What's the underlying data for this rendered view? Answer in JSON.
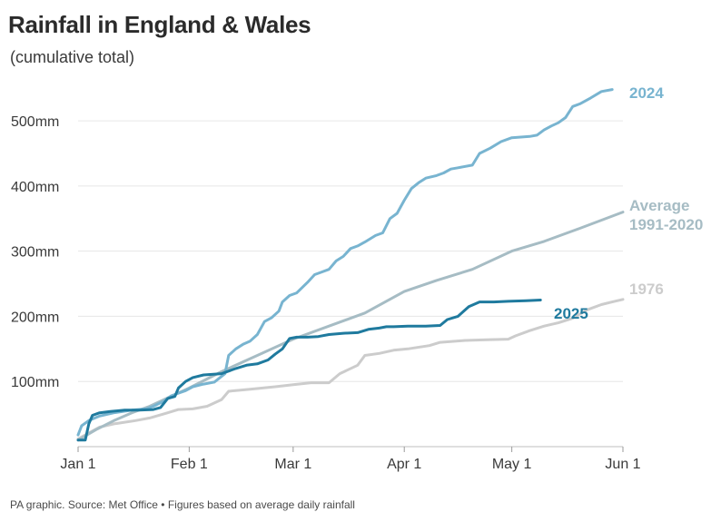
{
  "header": {
    "title": "Rainfall in England & Wales",
    "subtitle": "(cumulative total)"
  },
  "footer": {
    "source": "PA graphic. Source: Met Office • Figures based on average daily rainfall"
  },
  "chart_data": {
    "type": "line",
    "title": "Rainfall in England & Wales",
    "subtitle": "(cumulative total)",
    "xlabel": "",
    "ylabel": "",
    "x_unit": "day of year (0 = Jan 1)",
    "xlim": [
      0,
      152
    ],
    "ylim": [
      0,
      560
    ],
    "grid": true,
    "y_ticks": [
      {
        "value": 100,
        "label": "100mm"
      },
      {
        "value": 200,
        "label": "200mm"
      },
      {
        "value": 300,
        "label": "300mm"
      },
      {
        "value": 400,
        "label": "400mm"
      },
      {
        "value": 500,
        "label": "500mm"
      }
    ],
    "x_ticks": [
      {
        "value": 0,
        "label": "Jan 1"
      },
      {
        "value": 31,
        "label": "Feb 1"
      },
      {
        "value": 60,
        "label": "Mar 1"
      },
      {
        "value": 91,
        "label": "Apr 1"
      },
      {
        "value": 121,
        "label": "May 1"
      },
      {
        "value": 152,
        "label": "Jun 1"
      }
    ],
    "series": [
      {
        "name": "1976",
        "label_lines": [
          "1976"
        ],
        "color": "#cccccc",
        "points": [
          [
            0,
            12
          ],
          [
            2,
            18
          ],
          [
            6,
            30
          ],
          [
            10,
            35
          ],
          [
            16,
            40
          ],
          [
            20,
            44
          ],
          [
            25,
            52
          ],
          [
            28,
            57
          ],
          [
            32,
            58
          ],
          [
            36,
            62
          ],
          [
            40,
            72
          ],
          [
            42,
            85
          ],
          [
            48,
            88
          ],
          [
            55,
            92
          ],
          [
            60,
            95
          ],
          [
            65,
            98
          ],
          [
            70,
            98
          ],
          [
            73,
            112
          ],
          [
            78,
            125
          ],
          [
            80,
            140
          ],
          [
            84,
            143
          ],
          [
            88,
            148
          ],
          [
            92,
            150
          ],
          [
            98,
            155
          ],
          [
            101,
            160
          ],
          [
            108,
            163
          ],
          [
            114,
            164
          ],
          [
            120,
            165
          ],
          [
            122,
            170
          ],
          [
            126,
            178
          ],
          [
            130,
            185
          ],
          [
            134,
            190
          ],
          [
            138,
            197
          ],
          [
            142,
            210
          ],
          [
            146,
            218
          ],
          [
            149,
            222
          ],
          [
            152,
            226
          ]
        ]
      },
      {
        "name": "Average 1991-2020",
        "label_lines": [
          "Average",
          "1991-2020"
        ],
        "color": "#a6bcc4",
        "points": [
          [
            0,
            10
          ],
          [
            5,
            26
          ],
          [
            10,
            40
          ],
          [
            15,
            52
          ],
          [
            20,
            62
          ],
          [
            25,
            75
          ],
          [
            31,
            90
          ],
          [
            40,
            115
          ],
          [
            50,
            140
          ],
          [
            60,
            165
          ],
          [
            70,
            185
          ],
          [
            80,
            205
          ],
          [
            91,
            238
          ],
          [
            100,
            255
          ],
          [
            110,
            272
          ],
          [
            121,
            300
          ],
          [
            130,
            315
          ],
          [
            140,
            335
          ],
          [
            152,
            360
          ]
        ]
      },
      {
        "name": "2024",
        "label_lines": [
          "2024"
        ],
        "color": "#78b4d0",
        "points": [
          [
            0,
            18
          ],
          [
            1,
            32
          ],
          [
            3,
            40
          ],
          [
            6,
            47
          ],
          [
            10,
            52
          ],
          [
            15,
            56
          ],
          [
            19,
            58
          ],
          [
            21,
            62
          ],
          [
            24,
            70
          ],
          [
            26,
            78
          ],
          [
            28,
            82
          ],
          [
            30,
            86
          ],
          [
            32,
            92
          ],
          [
            35,
            96
          ],
          [
            38,
            99
          ],
          [
            41,
            112
          ],
          [
            42,
            140
          ],
          [
            44,
            150
          ],
          [
            46,
            157
          ],
          [
            48,
            162
          ],
          [
            50,
            172
          ],
          [
            52,
            192
          ],
          [
            54,
            198
          ],
          [
            56,
            208
          ],
          [
            57,
            222
          ],
          [
            59,
            232
          ],
          [
            61,
            236
          ],
          [
            64,
            252
          ],
          [
            66,
            264
          ],
          [
            68,
            268
          ],
          [
            70,
            272
          ],
          [
            72,
            285
          ],
          [
            74,
            292
          ],
          [
            76,
            304
          ],
          [
            78,
            308
          ],
          [
            80,
            314
          ],
          [
            83,
            324
          ],
          [
            85,
            328
          ],
          [
            87,
            350
          ],
          [
            89,
            358
          ],
          [
            91,
            378
          ],
          [
            93,
            396
          ],
          [
            95,
            405
          ],
          [
            97,
            412
          ],
          [
            100,
            416
          ],
          [
            102,
            420
          ],
          [
            104,
            426
          ],
          [
            106,
            428
          ],
          [
            110,
            432
          ],
          [
            112,
            450
          ],
          [
            115,
            458
          ],
          [
            118,
            468
          ],
          [
            121,
            474
          ],
          [
            126,
            476
          ],
          [
            128,
            478
          ],
          [
            130,
            486
          ],
          [
            132,
            492
          ],
          [
            134,
            497
          ],
          [
            136,
            505
          ],
          [
            138,
            522
          ],
          [
            140,
            526
          ],
          [
            143,
            535
          ],
          [
            146,
            545
          ],
          [
            149,
            548
          ]
        ]
      },
      {
        "name": "2025",
        "label_lines": [
          "2025"
        ],
        "color": "#1f7a9e",
        "points": [
          [
            0,
            10
          ],
          [
            2,
            10
          ],
          [
            3,
            35
          ],
          [
            4,
            48
          ],
          [
            6,
            52
          ],
          [
            9,
            54
          ],
          [
            13,
            56
          ],
          [
            17,
            56
          ],
          [
            21,
            57
          ],
          [
            23,
            60
          ],
          [
            25,
            74
          ],
          [
            27,
            77
          ],
          [
            28,
            90
          ],
          [
            30,
            100
          ],
          [
            32,
            106
          ],
          [
            35,
            110
          ],
          [
            40,
            112
          ],
          [
            44,
            120
          ],
          [
            47,
            125
          ],
          [
            50,
            127
          ],
          [
            53,
            133
          ],
          [
            55,
            142
          ],
          [
            57,
            150
          ],
          [
            59,
            166
          ],
          [
            61,
            168
          ],
          [
            64,
            168
          ],
          [
            67,
            169
          ],
          [
            70,
            172
          ],
          [
            74,
            174
          ],
          [
            78,
            175
          ],
          [
            81,
            180
          ],
          [
            84,
            182
          ],
          [
            86,
            184
          ],
          [
            88,
            184
          ],
          [
            92,
            185
          ],
          [
            97,
            185
          ],
          [
            101,
            186
          ],
          [
            103,
            195
          ],
          [
            106,
            200
          ],
          [
            109,
            215
          ],
          [
            112,
            222
          ],
          [
            116,
            222
          ],
          [
            120,
            223
          ],
          [
            125,
            224
          ],
          [
            129,
            225
          ]
        ]
      }
    ]
  }
}
